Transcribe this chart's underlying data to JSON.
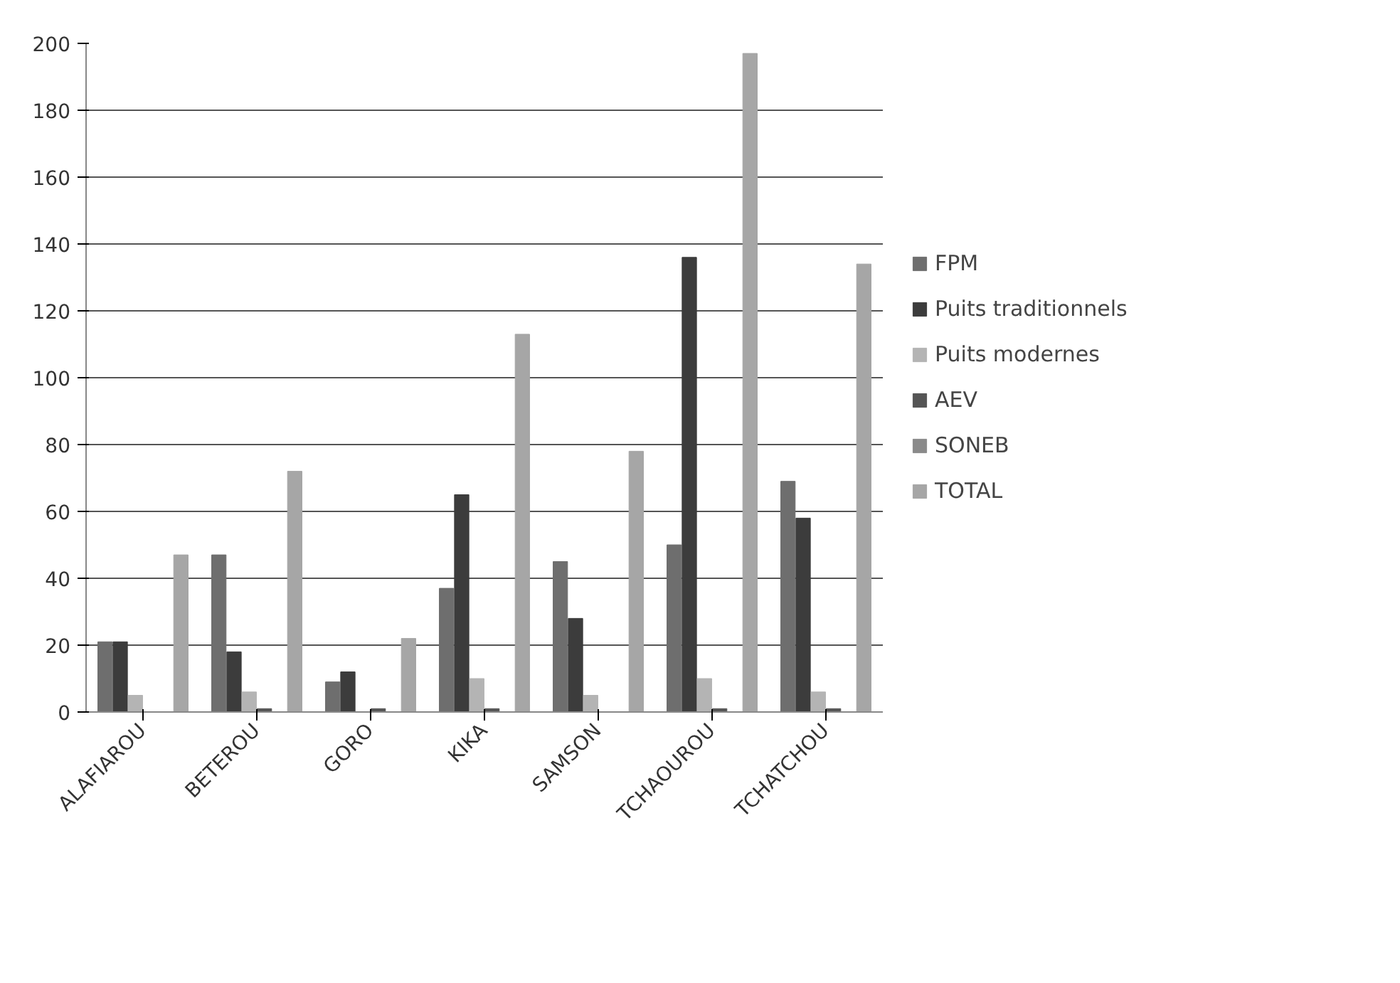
{
  "chart_data": {
    "type": "bar",
    "categories": [
      "ALAFIAROU",
      "BETEROU",
      "GORO",
      "KIKA",
      "SAMSON",
      "TCHAOUROU",
      "TCHATCHOU"
    ],
    "series": [
      {
        "name": "FPM",
        "color": "#6e6e6e",
        "values": [
          21,
          47,
          9,
          37,
          45,
          50,
          69
        ]
      },
      {
        "name": "Puits traditionnels",
        "color": "#3c3c3c",
        "values": [
          21,
          18,
          12,
          65,
          28,
          136,
          58
        ]
      },
      {
        "name": "Puits modernes",
        "color": "#b4b4b4",
        "values": [
          5,
          6,
          0,
          10,
          5,
          10,
          6
        ]
      },
      {
        "name": "AEV",
        "color": "#555555",
        "values": [
          0,
          1,
          1,
          1,
          0,
          1,
          1
        ]
      },
      {
        "name": "SONEB",
        "color": "#8a8a8a",
        "values": [
          0,
          0,
          0,
          0,
          0,
          0,
          0
        ]
      },
      {
        "name": "TOTAL",
        "color": "#a6a6a6",
        "values": [
          47,
          72,
          22,
          113,
          78,
          197,
          134
        ]
      }
    ],
    "ylim": [
      0,
      200
    ],
    "yticks": [
      0,
      20,
      40,
      60,
      80,
      100,
      120,
      140,
      160,
      180,
      200
    ],
    "grid": "y",
    "legend": "right"
  }
}
